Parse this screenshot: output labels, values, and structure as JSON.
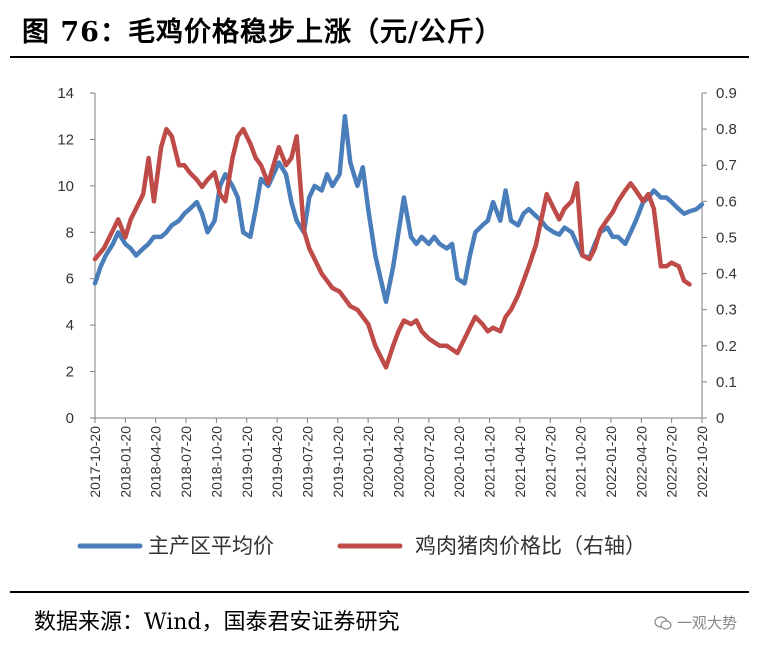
{
  "title": "图 76：毛鸡价格稳步上涨（元/公斤）",
  "source": "数据来源：Wind，国泰君安证券研究",
  "watermark": "一观大势",
  "colors": {
    "series1": "#4a7ebb",
    "series2": "#be4b48",
    "axis": "#7f7f7f"
  },
  "chart_data": {
    "type": "line",
    "title": "毛鸡价格稳步上涨（元/公斤）",
    "x_tick_labels": [
      "2017-10-20",
      "2018-01-20",
      "2018-04-20",
      "2018-07-20",
      "2018-10-20",
      "2019-01-20",
      "2019-04-20",
      "2019-07-20",
      "2019-10-20",
      "2020-01-20",
      "2020-04-20",
      "2020-07-20",
      "2020-10-20",
      "2021-01-20",
      "2021-04-20",
      "2021-07-20",
      "2021-10-20",
      "2022-01-20",
      "2022-04-20",
      "2022-07-20",
      "2022-10-20"
    ],
    "y_left": {
      "ticks": [
        "14",
        "12",
        "10",
        "8",
        "6",
        "4",
        "2",
        "0"
      ],
      "min": 0,
      "max": 14
    },
    "y_right": {
      "ticks": [
        "0.9",
        "0.8",
        "0.7",
        "0.6",
        "0.5",
        "0.4",
        "0.3",
        "0.2",
        "0.1",
        "0"
      ],
      "min": 0,
      "max": 0.9
    },
    "series": [
      {
        "name": "主产区平均价",
        "axis": "left",
        "points": [
          [
            0,
            5.8
          ],
          [
            0.3,
            6.5
          ],
          [
            0.6,
            7.0
          ],
          [
            1.0,
            7.5
          ],
          [
            1.3,
            8.0
          ],
          [
            1.7,
            7.5
          ],
          [
            2.0,
            7.3
          ],
          [
            2.3,
            7.0
          ],
          [
            2.7,
            7.3
          ],
          [
            3.0,
            7.5
          ],
          [
            3.3,
            7.8
          ],
          [
            3.7,
            7.8
          ],
          [
            4.0,
            8.0
          ],
          [
            4.3,
            8.3
          ],
          [
            4.7,
            8.5
          ],
          [
            5.0,
            8.8
          ],
          [
            5.3,
            9.0
          ],
          [
            5.7,
            9.3
          ],
          [
            6.0,
            8.8
          ],
          [
            6.3,
            8.0
          ],
          [
            6.7,
            8.5
          ],
          [
            7.0,
            10.0
          ],
          [
            7.3,
            10.5
          ],
          [
            7.7,
            10.0
          ],
          [
            8.0,
            9.5
          ],
          [
            8.3,
            8.0
          ],
          [
            8.7,
            7.8
          ],
          [
            9.0,
            9.0
          ],
          [
            9.3,
            10.3
          ],
          [
            9.7,
            10.0
          ],
          [
            10.0,
            10.5
          ],
          [
            10.3,
            11.0
          ],
          [
            10.7,
            10.5
          ],
          [
            11.0,
            9.3
          ],
          [
            11.3,
            8.5
          ],
          [
            11.7,
            8.0
          ],
          [
            12.0,
            9.5
          ],
          [
            12.3,
            10.0
          ],
          [
            12.7,
            9.8
          ],
          [
            13.0,
            10.5
          ],
          [
            13.3,
            10.0
          ],
          [
            13.7,
            10.5
          ],
          [
            14.0,
            13.0
          ],
          [
            14.3,
            11.0
          ],
          [
            14.7,
            10.0
          ],
          [
            15.0,
            10.8
          ],
          [
            15.3,
            9.0
          ],
          [
            15.7,
            7.0
          ],
          [
            16.0,
            6.0
          ],
          [
            16.3,
            5.0
          ],
          [
            16.7,
            6.5
          ],
          [
            17.0,
            8.0
          ],
          [
            17.3,
            9.5
          ],
          [
            17.7,
            7.8
          ],
          [
            18.0,
            7.5
          ],
          [
            18.3,
            7.8
          ],
          [
            18.7,
            7.5
          ],
          [
            19.0,
            7.8
          ],
          [
            19.3,
            7.5
          ],
          [
            19.7,
            7.3
          ],
          [
            20.0,
            7.5
          ],
          [
            20.3,
            6.0
          ],
          [
            20.7,
            5.8
          ],
          [
            21.0,
            7.0
          ],
          [
            21.3,
            8.0
          ],
          [
            21.7,
            8.3
          ],
          [
            22.0,
            8.5
          ],
          [
            22.3,
            9.3
          ],
          [
            22.7,
            8.5
          ],
          [
            23.0,
            9.8
          ],
          [
            23.3,
            8.5
          ],
          [
            23.7,
            8.3
          ],
          [
            24.0,
            8.8
          ],
          [
            24.3,
            9.0
          ],
          [
            24.7,
            8.7
          ],
          [
            25.0,
            8.5
          ],
          [
            25.3,
            8.2
          ],
          [
            25.7,
            8.0
          ],
          [
            26.0,
            7.9
          ],
          [
            26.3,
            8.2
          ],
          [
            26.7,
            8.0
          ],
          [
            27.0,
            7.5
          ],
          [
            27.3,
            7.0
          ],
          [
            27.7,
            6.9
          ],
          [
            28.0,
            7.5
          ],
          [
            28.3,
            8.0
          ],
          [
            28.7,
            8.2
          ],
          [
            29.0,
            7.8
          ],
          [
            29.3,
            7.8
          ],
          [
            29.7,
            7.5
          ],
          [
            30.0,
            8.0
          ],
          [
            30.3,
            8.5
          ],
          [
            30.7,
            9.3
          ],
          [
            31.0,
            9.5
          ],
          [
            31.3,
            9.8
          ],
          [
            31.7,
            9.5
          ],
          [
            32.0,
            9.5
          ],
          [
            32.3,
            9.3
          ],
          [
            32.7,
            9.0
          ],
          [
            33.0,
            8.8
          ],
          [
            33.3,
            8.9
          ],
          [
            33.7,
            9.0
          ],
          [
            34.0,
            9.2
          ]
        ]
      },
      {
        "name": "鸡肉猪肉价格比（右轴）",
        "axis": "right",
        "points": [
          [
            0,
            0.44
          ],
          [
            0.5,
            0.47
          ],
          [
            1.0,
            0.52
          ],
          [
            1.3,
            0.55
          ],
          [
            1.7,
            0.5
          ],
          [
            2.0,
            0.55
          ],
          [
            2.3,
            0.58
          ],
          [
            2.7,
            0.62
          ],
          [
            3.0,
            0.72
          ],
          [
            3.3,
            0.6
          ],
          [
            3.7,
            0.75
          ],
          [
            4.0,
            0.8
          ],
          [
            4.3,
            0.78
          ],
          [
            4.7,
            0.7
          ],
          [
            5.0,
            0.7
          ],
          [
            5.3,
            0.68
          ],
          [
            5.7,
            0.66
          ],
          [
            6.0,
            0.64
          ],
          [
            6.3,
            0.66
          ],
          [
            6.7,
            0.68
          ],
          [
            7.0,
            0.62
          ],
          [
            7.3,
            0.6
          ],
          [
            7.7,
            0.72
          ],
          [
            8.0,
            0.78
          ],
          [
            8.3,
            0.8
          ],
          [
            8.7,
            0.76
          ],
          [
            9.0,
            0.72
          ],
          [
            9.3,
            0.7
          ],
          [
            9.7,
            0.65
          ],
          [
            10.0,
            0.7
          ],
          [
            10.3,
            0.75
          ],
          [
            10.7,
            0.7
          ],
          [
            11.0,
            0.72
          ],
          [
            11.3,
            0.78
          ],
          [
            11.7,
            0.52
          ],
          [
            12.0,
            0.47
          ],
          [
            12.3,
            0.44
          ],
          [
            12.7,
            0.4
          ],
          [
            13.0,
            0.38
          ],
          [
            13.3,
            0.36
          ],
          [
            13.7,
            0.35
          ],
          [
            14.0,
            0.33
          ],
          [
            14.3,
            0.31
          ],
          [
            14.7,
            0.3
          ],
          [
            15.0,
            0.28
          ],
          [
            15.3,
            0.26
          ],
          [
            15.7,
            0.2
          ],
          [
            16.0,
            0.17
          ],
          [
            16.3,
            0.14
          ],
          [
            16.7,
            0.2
          ],
          [
            17.0,
            0.24
          ],
          [
            17.3,
            0.27
          ],
          [
            17.7,
            0.26
          ],
          [
            18.0,
            0.27
          ],
          [
            18.3,
            0.24
          ],
          [
            18.7,
            0.22
          ],
          [
            19.0,
            0.21
          ],
          [
            19.3,
            0.2
          ],
          [
            19.7,
            0.2
          ],
          [
            20.0,
            0.19
          ],
          [
            20.3,
            0.18
          ],
          [
            20.7,
            0.22
          ],
          [
            21.0,
            0.25
          ],
          [
            21.3,
            0.28
          ],
          [
            21.7,
            0.26
          ],
          [
            22.0,
            0.24
          ],
          [
            22.3,
            0.25
          ],
          [
            22.7,
            0.24
          ],
          [
            23.0,
            0.28
          ],
          [
            23.3,
            0.3
          ],
          [
            23.7,
            0.34
          ],
          [
            24.0,
            0.38
          ],
          [
            24.3,
            0.42
          ],
          [
            24.7,
            0.48
          ],
          [
            25.0,
            0.55
          ],
          [
            25.3,
            0.62
          ],
          [
            25.7,
            0.58
          ],
          [
            26.0,
            0.55
          ],
          [
            26.3,
            0.58
          ],
          [
            26.7,
            0.6
          ],
          [
            27.0,
            0.65
          ],
          [
            27.3,
            0.45
          ],
          [
            27.7,
            0.44
          ],
          [
            28.0,
            0.47
          ],
          [
            28.3,
            0.52
          ],
          [
            28.7,
            0.55
          ],
          [
            29.0,
            0.57
          ],
          [
            29.3,
            0.6
          ],
          [
            29.7,
            0.63
          ],
          [
            30.0,
            0.65
          ],
          [
            30.3,
            0.63
          ],
          [
            30.7,
            0.6
          ],
          [
            31.0,
            0.62
          ],
          [
            31.3,
            0.58
          ],
          [
            31.7,
            0.42
          ],
          [
            32.0,
            0.42
          ],
          [
            32.3,
            0.43
          ],
          [
            32.7,
            0.42
          ],
          [
            33.0,
            0.38
          ],
          [
            33.3,
            0.37
          ]
        ]
      }
    ],
    "legend": [
      "主产区平均价",
      "鸡肉猪肉价格比（右轴）"
    ],
    "legend_position": "bottom"
  }
}
